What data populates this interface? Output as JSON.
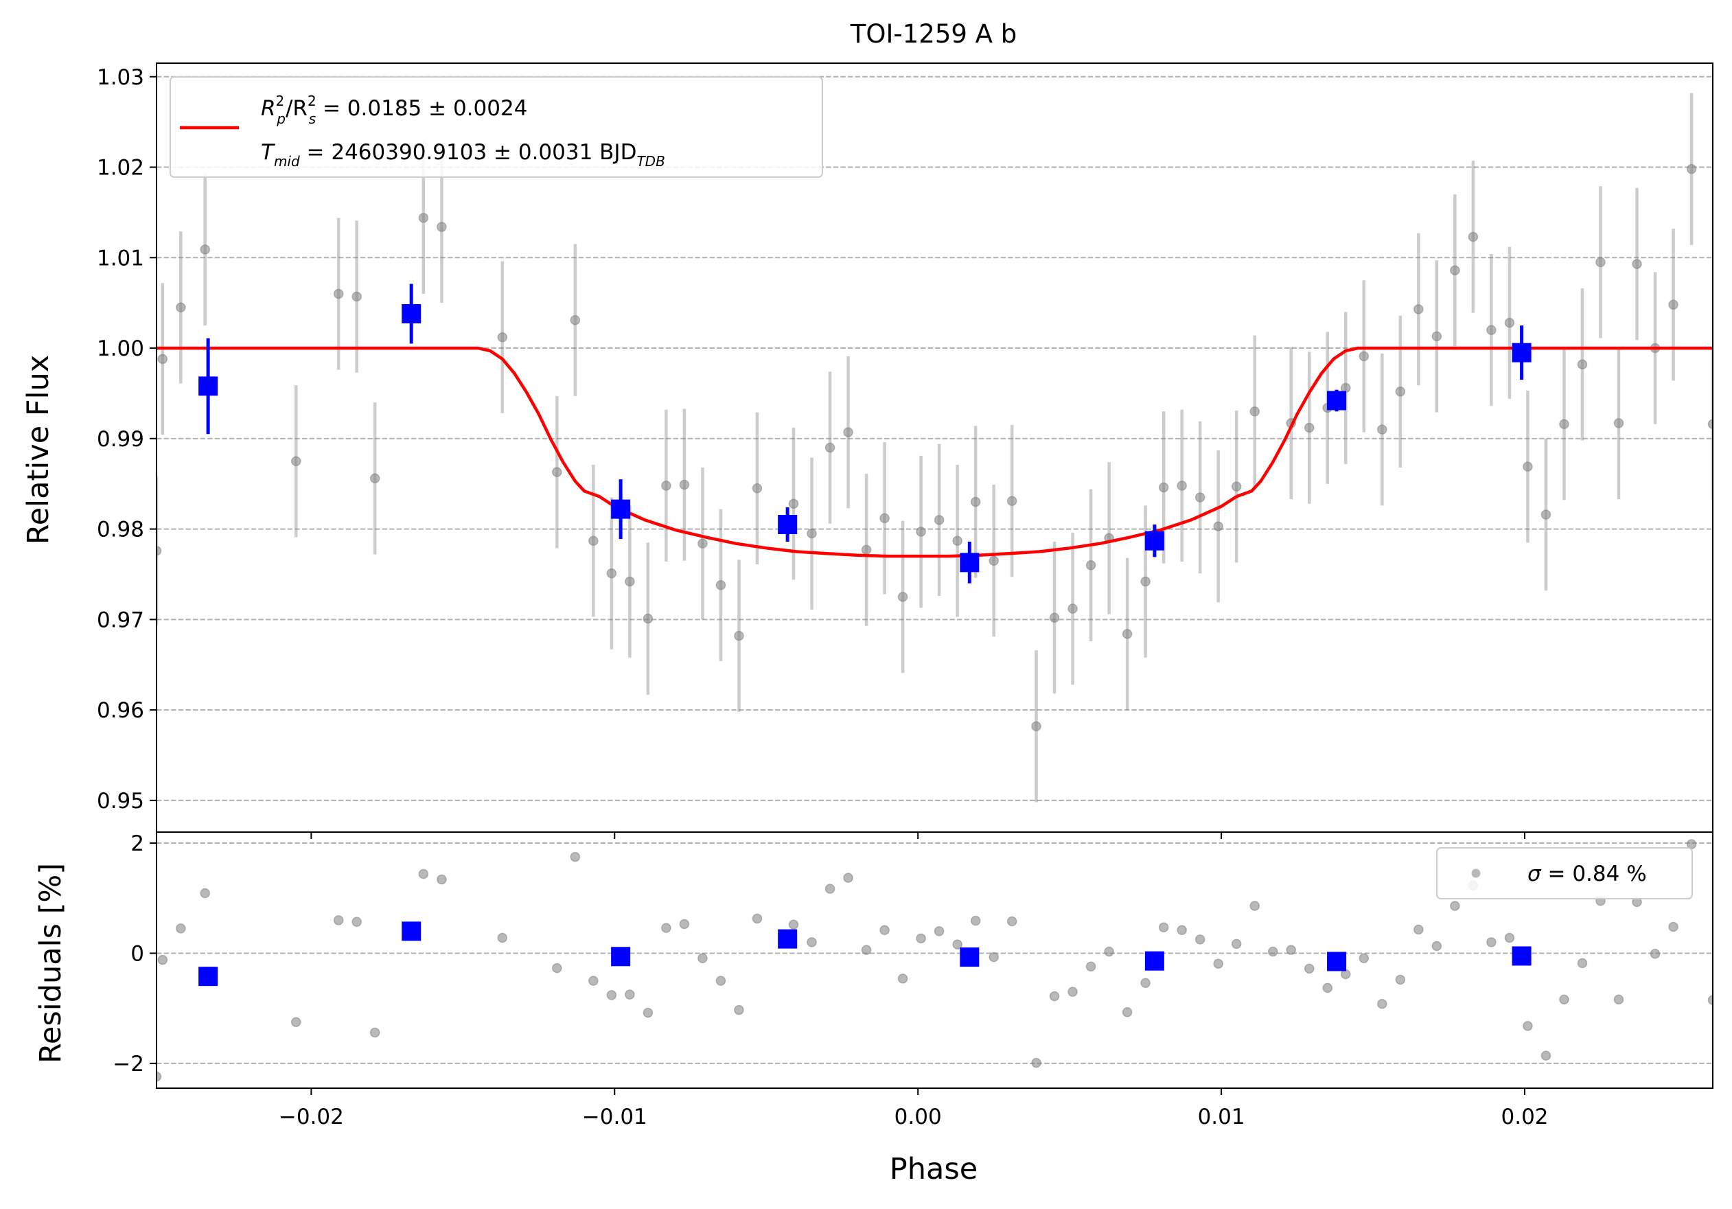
{
  "chart_data": [
    {
      "type": "scatter",
      "title": "TOI-1259 A b",
      "xlabel": "",
      "ylabel": "Relative Flux",
      "xlim": [
        -0.0251,
        0.0262
      ],
      "ylim": [
        0.9465,
        1.0315
      ],
      "xticks": [
        -0.02,
        -0.01,
        0.0,
        0.01,
        0.02
      ],
      "xtick_labels": [
        "",
        "",
        "",
        "",
        ""
      ],
      "yticks": [
        0.95,
        0.96,
        0.97,
        0.98,
        0.99,
        1.0,
        1.01,
        1.02,
        1.03
      ],
      "ytick_labels": [
        "0.95",
        "0.96",
        "0.97",
        "0.98",
        "0.99",
        "1.00",
        "1.01",
        "1.02",
        "1.03"
      ],
      "grid": "horizontal dashed",
      "legend": {
        "position": "top-left",
        "entries": [
          {
            "label_main": "R",
            "label_lines": [
              "Rp²/Rs² = 0.0185 ± 0.0024",
              "Tmid = 2460390.9103 ± 0.0031 BJDTDB"
            ],
            "color": "#ff0000"
          }
        ]
      },
      "legend_line1": {
        "a": "R",
        "a_sup": "2",
        "a_sub": "p",
        "b": "/R",
        "b_sup": "2",
        "b_sub": "s",
        "rest": " = 0.0185 ± 0.0024"
      },
      "legend_line2": {
        "a": "T",
        "a_sub": "mid",
        "rest": " = 2460390.9103 ± 0.0031 BJD",
        "rest_sub": "TDB"
      },
      "series": [
        {
          "name": "",
          "kind": "data",
          "color": "#808080",
          "points": [
            [
              -0.0251,
              0.9776,
              0.0082
            ],
            [
              -0.0249,
              0.9988,
              0.0084
            ],
            [
              -0.0243,
              1.0045,
              0.0084
            ],
            [
              -0.0235,
              1.0109,
              0.0084
            ],
            [
              -0.0205,
              0.9875,
              0.0084
            ],
            [
              -0.0191,
              1.006,
              0.0084
            ],
            [
              -0.0185,
              1.0057,
              0.0084
            ],
            [
              -0.0179,
              0.9856,
              0.0084
            ],
            [
              -0.0163,
              1.0144,
              0.0084
            ],
            [
              -0.0157,
              1.0134,
              0.0084
            ],
            [
              -0.0137,
              1.0012,
              0.0084
            ],
            [
              -0.0119,
              0.9863,
              0.0084
            ],
            [
              -0.0113,
              1.0031,
              0.0084
            ],
            [
              -0.0107,
              0.9787,
              0.0084
            ],
            [
              -0.0101,
              0.9751,
              0.0084
            ],
            [
              -0.0095,
              0.9742,
              0.0084
            ],
            [
              -0.0089,
              0.9701,
              0.0084
            ],
            [
              -0.0083,
              0.9848,
              0.0084
            ],
            [
              -0.0077,
              0.9849,
              0.0084
            ],
            [
              -0.0071,
              0.9784,
              0.0084
            ],
            [
              -0.0065,
              0.9738,
              0.0084
            ],
            [
              -0.0059,
              0.9682,
              0.0084
            ],
            [
              -0.0053,
              0.9845,
              0.0084
            ],
            [
              -0.0041,
              0.9828,
              0.0084
            ],
            [
              -0.0035,
              0.9795,
              0.0084
            ],
            [
              -0.0029,
              0.989,
              0.0084
            ],
            [
              -0.0023,
              0.9907,
              0.0084
            ],
            [
              -0.0017,
              0.9777,
              0.0084
            ],
            [
              -0.0011,
              0.9812,
              0.0084
            ],
            [
              -0.0005,
              0.9725,
              0.0084
            ],
            [
              0.0001,
              0.9797,
              0.0084
            ],
            [
              0.0007,
              0.981,
              0.0084
            ],
            [
              0.0013,
              0.9787,
              0.0084
            ],
            [
              0.0019,
              0.983,
              0.0084
            ],
            [
              0.0025,
              0.9765,
              0.0084
            ],
            [
              0.0031,
              0.9831,
              0.0084
            ],
            [
              0.0039,
              0.9582,
              0.0084
            ],
            [
              0.0045,
              0.9702,
              0.0084
            ],
            [
              0.0051,
              0.9712,
              0.0084
            ],
            [
              0.0057,
              0.976,
              0.0084
            ],
            [
              0.0063,
              0.979,
              0.0084
            ],
            [
              0.0069,
              0.9684,
              0.0084
            ],
            [
              0.0075,
              0.9742,
              0.0084
            ],
            [
              0.0081,
              0.9846,
              0.0084
            ],
            [
              0.0087,
              0.9848,
              0.0084
            ],
            [
              0.0093,
              0.9835,
              0.0084
            ],
            [
              0.0099,
              0.9803,
              0.0084
            ],
            [
              0.0105,
              0.9847,
              0.0084
            ],
            [
              0.0111,
              0.993,
              0.0084
            ],
            [
              0.0123,
              0.9917,
              0.0084
            ],
            [
              0.0129,
              0.9912,
              0.0084
            ],
            [
              0.0135,
              0.9934,
              0.0084
            ],
            [
              0.0141,
              0.9956,
              0.0084
            ],
            [
              0.0147,
              0.9991,
              0.0084
            ],
            [
              0.0153,
              0.991,
              0.0084
            ],
            [
              0.0159,
              0.9952,
              0.0084
            ],
            [
              0.0165,
              1.0043,
              0.0084
            ],
            [
              0.0171,
              1.0013,
              0.0084
            ],
            [
              0.0177,
              1.0086,
              0.0084
            ],
            [
              0.0183,
              1.0123,
              0.0084
            ],
            [
              0.0189,
              1.002,
              0.0084
            ],
            [
              0.0195,
              1.0028,
              0.0084
            ],
            [
              0.0201,
              0.9869,
              0.0084
            ],
            [
              0.0207,
              0.9816,
              0.0084
            ],
            [
              0.0213,
              0.9916,
              0.0084
            ],
            [
              0.0219,
              0.9982,
              0.0084
            ],
            [
              0.0225,
              1.0095,
              0.0084
            ],
            [
              0.0231,
              0.9917,
              0.0084
            ],
            [
              0.0237,
              1.0093,
              0.0084
            ],
            [
              0.0243,
              1.0,
              0.0084
            ],
            [
              0.0249,
              1.0048,
              0.0084
            ],
            [
              0.0255,
              1.0198,
              0.0084
            ],
            [
              0.0262,
              0.9916,
              0.0084
            ]
          ]
        },
        {
          "name": "",
          "kind": "binned",
          "color": "#0000ff",
          "points": [
            [
              -0.0234,
              0.9958,
              0.0053
            ],
            [
              -0.0167,
              1.0038,
              0.0033
            ],
            [
              -0.0098,
              0.9822,
              0.0033
            ],
            [
              -0.0043,
              0.9805,
              0.0019
            ],
            [
              0.0017,
              0.9763,
              0.0023
            ],
            [
              0.0078,
              0.9787,
              0.0018
            ],
            [
              0.0138,
              0.9942,
              0.0012
            ],
            [
              0.0199,
              0.9995,
              0.003
            ]
          ]
        },
        {
          "name": "",
          "kind": "model",
          "color": "#ff0000",
          "points": [
            [
              -0.0251,
              1.0
            ],
            [
              -0.0145,
              1.0
            ],
            [
              -0.0141,
              0.9997
            ],
            [
              -0.0137,
              0.9988
            ],
            [
              -0.0133,
              0.9972
            ],
            [
              -0.0129,
              0.9951
            ],
            [
              -0.0125,
              0.9927
            ],
            [
              -0.0121,
              0.9899
            ],
            [
              -0.0117,
              0.9874
            ],
            [
              -0.0113,
              0.9853
            ],
            [
              -0.011,
              0.9842
            ],
            [
              -0.0105,
              0.9836
            ],
            [
              -0.01,
              0.9825
            ],
            [
              -0.009,
              0.981
            ],
            [
              -0.008,
              0.9799
            ],
            [
              -0.007,
              0.9791
            ],
            [
              -0.006,
              0.9784
            ],
            [
              -0.005,
              0.9779
            ],
            [
              -0.004,
              0.9775
            ],
            [
              -0.003,
              0.9773
            ],
            [
              -0.002,
              0.9771
            ],
            [
              -0.001,
              0.977
            ],
            [
              0.0,
              0.977
            ],
            [
              0.001,
              0.977
            ],
            [
              0.002,
              0.9771
            ],
            [
              0.003,
              0.9773
            ],
            [
              0.004,
              0.9775
            ],
            [
              0.005,
              0.9779
            ],
            [
              0.006,
              0.9784
            ],
            [
              0.007,
              0.9791
            ],
            [
              0.008,
              0.9799
            ],
            [
              0.009,
              0.981
            ],
            [
              0.01,
              0.9825
            ],
            [
              0.0105,
              0.9836
            ],
            [
              0.011,
              0.9842
            ],
            [
              0.0113,
              0.9853
            ],
            [
              0.0117,
              0.9874
            ],
            [
              0.0121,
              0.9899
            ],
            [
              0.0125,
              0.9927
            ],
            [
              0.0129,
              0.9951
            ],
            [
              0.0133,
              0.9972
            ],
            [
              0.0137,
              0.9988
            ],
            [
              0.0141,
              0.9997
            ],
            [
              0.0145,
              1.0
            ],
            [
              0.0262,
              1.0
            ]
          ]
        }
      ]
    },
    {
      "type": "scatter",
      "title": "",
      "xlabel": "Phase",
      "ylabel": "Residuals [%]",
      "xlim": [
        -0.0251,
        0.0262
      ],
      "ylim": [
        -2.45,
        2.2
      ],
      "xticks": [
        -0.02,
        -0.01,
        0.0,
        0.01,
        0.02
      ],
      "xtick_labels": [
        "−0.02",
        "−0.01",
        "0.00",
        "0.01",
        "0.02"
      ],
      "yticks": [
        -2,
        0,
        2
      ],
      "ytick_labels": [
        "−2",
        "0",
        "2"
      ],
      "grid": "horizontal dashed",
      "legend": {
        "position": "top-right",
        "sigma_symbol": "σ",
        "sigma_rest": " = 0.84 %"
      },
      "series": [
        {
          "name": "",
          "kind": "data",
          "color": "#808080",
          "points": [
            [
              -0.0251,
              -2.24
            ],
            [
              -0.0249,
              -0.12
            ],
            [
              -0.0243,
              0.45
            ],
            [
              -0.0235,
              1.09
            ],
            [
              -0.0205,
              -1.25
            ],
            [
              -0.0191,
              0.6
            ],
            [
              -0.0185,
              0.57
            ],
            [
              -0.0179,
              -1.44
            ],
            [
              -0.0163,
              1.44
            ],
            [
              -0.0157,
              1.34
            ],
            [
              -0.0137,
              0.28
            ],
            [
              -0.0119,
              -0.27
            ],
            [
              -0.0113,
              1.75
            ],
            [
              -0.0107,
              -0.5
            ],
            [
              -0.0101,
              -0.76
            ],
            [
              -0.0095,
              -0.75
            ],
            [
              -0.0089,
              -1.08
            ],
            [
              -0.0083,
              0.46
            ],
            [
              -0.0077,
              0.53
            ],
            [
              -0.0071,
              -0.09
            ],
            [
              -0.0065,
              -0.5
            ],
            [
              -0.0059,
              -1.03
            ],
            [
              -0.0053,
              0.63
            ],
            [
              -0.0041,
              0.52
            ],
            [
              -0.0035,
              0.2
            ],
            [
              -0.0029,
              1.17
            ],
            [
              -0.0023,
              1.37
            ],
            [
              -0.0017,
              0.06
            ],
            [
              -0.0011,
              0.42
            ],
            [
              -0.0005,
              -0.46
            ],
            [
              0.0001,
              0.27
            ],
            [
              0.0007,
              0.4
            ],
            [
              0.0013,
              0.16
            ],
            [
              0.0019,
              0.59
            ],
            [
              0.0025,
              -0.07
            ],
            [
              0.0031,
              0.58
            ],
            [
              0.0039,
              -1.99
            ],
            [
              0.0045,
              -0.78
            ],
            [
              0.0051,
              -0.7
            ],
            [
              0.0057,
              -0.24
            ],
            [
              0.0063,
              0.03
            ],
            [
              0.0069,
              -1.07
            ],
            [
              0.0075,
              -0.54
            ],
            [
              0.0081,
              0.47
            ],
            [
              0.0087,
              0.42
            ],
            [
              0.0093,
              0.25
            ],
            [
              0.0099,
              -0.19
            ],
            [
              0.0105,
              0.17
            ],
            [
              0.0111,
              0.86
            ],
            [
              0.0117,
              0.03
            ],
            [
              0.0123,
              0.06
            ],
            [
              0.0129,
              -0.28
            ],
            [
              0.0135,
              -0.63
            ],
            [
              0.0141,
              -0.38
            ],
            [
              0.0147,
              -0.09
            ],
            [
              0.0153,
              -0.92
            ],
            [
              0.0159,
              -0.48
            ],
            [
              0.0165,
              0.43
            ],
            [
              0.0171,
              0.13
            ],
            [
              0.0177,
              0.86
            ],
            [
              0.0183,
              1.23
            ],
            [
              0.0189,
              0.2
            ],
            [
              0.0195,
              0.28
            ],
            [
              0.0201,
              -1.32
            ],
            [
              0.0207,
              -1.86
            ],
            [
              0.0213,
              -0.84
            ],
            [
              0.0219,
              -0.18
            ],
            [
              0.0225,
              0.95
            ],
            [
              0.0231,
              -0.84
            ],
            [
              0.0237,
              0.93
            ],
            [
              0.0243,
              -0.01
            ],
            [
              0.0249,
              0.48
            ],
            [
              0.0255,
              1.98
            ],
            [
              0.0262,
              -0.85
            ]
          ]
        },
        {
          "name": "",
          "kind": "binned",
          "color": "#0000ff",
          "points": [
            [
              -0.0234,
              -0.42
            ],
            [
              -0.0167,
              0.4
            ],
            [
              -0.0098,
              -0.06
            ],
            [
              -0.0043,
              0.26
            ],
            [
              0.0017,
              -0.07
            ],
            [
              0.0078,
              -0.14
            ],
            [
              0.0138,
              -0.15
            ],
            [
              0.0199,
              -0.05
            ]
          ]
        }
      ]
    }
  ]
}
